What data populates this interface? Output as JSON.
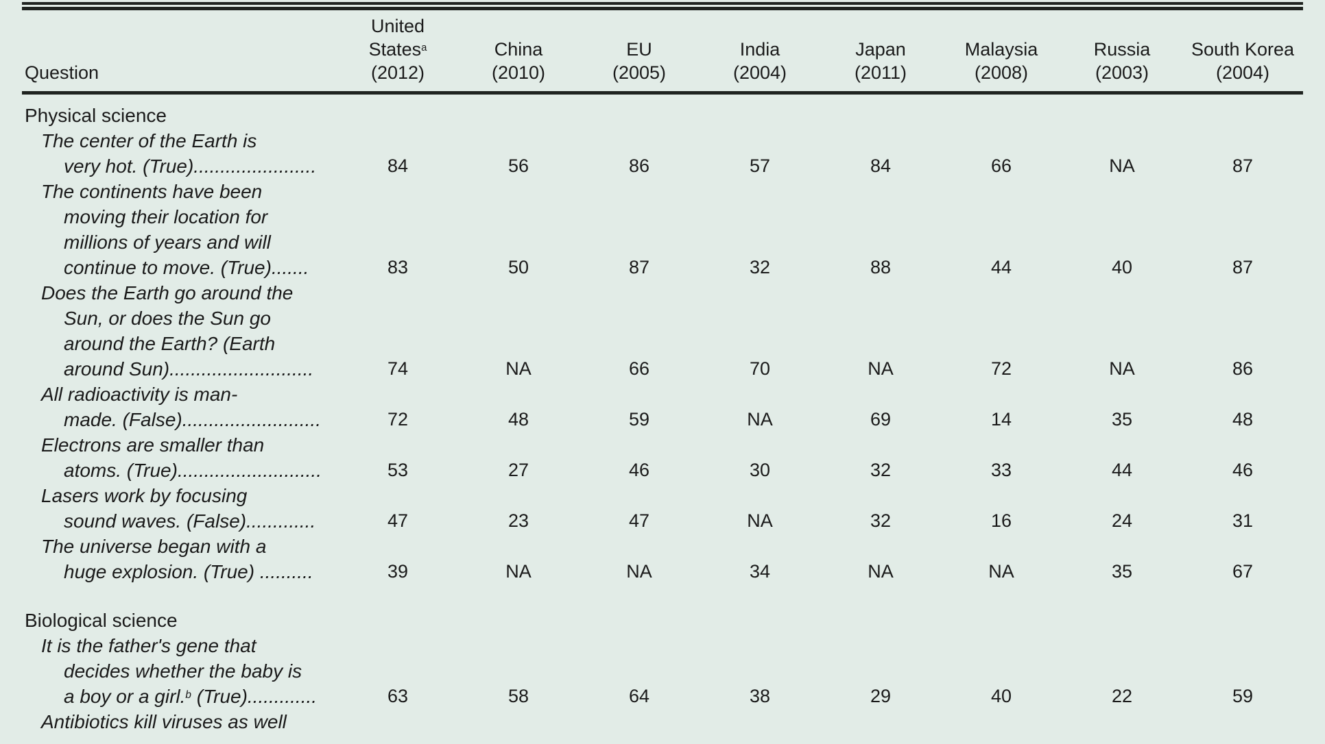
{
  "page": {
    "background_color": "#e2ece7",
    "text_color": "#1a1a1a",
    "rule_color": "#1f2320"
  },
  "table": {
    "question_header": "Question",
    "columns": [
      {
        "name_lines": [
          "United",
          {
            "parts": [
              {
                "text": "States"
              },
              {
                "sup": "a"
              }
            ]
          }
        ],
        "year": "(2012)"
      },
      {
        "name_lines": [
          "China"
        ],
        "year": "(2010)"
      },
      {
        "name_lines": [
          "EU"
        ],
        "year": "(2005)"
      },
      {
        "name_lines": [
          "India"
        ],
        "year": "(2004)"
      },
      {
        "name_lines": [
          "Japan"
        ],
        "year": "(2011)"
      },
      {
        "name_lines": [
          "Malaysia"
        ],
        "year": "(2008)"
      },
      {
        "name_lines": [
          "Russia"
        ],
        "year": "(2003)"
      },
      {
        "name_lines": [
          "South Korea"
        ],
        "year": "(2004)"
      }
    ],
    "sections": [
      {
        "title": "Physical science",
        "rows": [
          {
            "lines": [
              "The center of the Earth is",
              "very hot. (True)......................."
            ],
            "values": [
              "84",
              "56",
              "86",
              "57",
              "84",
              "66",
              "NA",
              "87"
            ]
          },
          {
            "lines": [
              "The continents have been",
              "moving their location for",
              "millions of years and will",
              "continue to move. (True)......."
            ],
            "values": [
              "83",
              "50",
              "87",
              "32",
              "88",
              "44",
              "40",
              "87"
            ]
          },
          {
            "lines": [
              "Does the Earth go around the",
              "Sun, or does the Sun go",
              "around the Earth? (Earth",
              "around Sun)..........................."
            ],
            "values": [
              "74",
              "NA",
              "66",
              "70",
              "NA",
              "72",
              "NA",
              "86"
            ]
          },
          {
            "lines": [
              "All radioactivity is man-",
              "made. (False).........................."
            ],
            "values": [
              "72",
              "48",
              "59",
              "NA",
              "69",
              "14",
              "35",
              "48"
            ]
          },
          {
            "lines": [
              "Electrons are smaller than",
              "atoms. (True)..........................."
            ],
            "values": [
              "53",
              "27",
              "46",
              "30",
              "32",
              "33",
              "44",
              "46"
            ]
          },
          {
            "lines": [
              "Lasers work by focusing",
              "sound waves. (False)............."
            ],
            "values": [
              "47",
              "23",
              "47",
              "NA",
              "32",
              "16",
              "24",
              "31"
            ]
          },
          {
            "lines": [
              "The universe began with a",
              "huge explosion. (True) .........."
            ],
            "values": [
              "39",
              "NA",
              "NA",
              "34",
              "NA",
              "NA",
              "35",
              "67"
            ]
          }
        ]
      },
      {
        "title": "Biological science",
        "rows": [
          {
            "lines": [
              "It is the father's gene that",
              "decides whether the baby is",
              {
                "parts": [
                  {
                    "text": "a boy or a girl."
                  },
                  {
                    "sup": "b"
                  },
                  {
                    "text": " (True)............."
                  }
                ]
              }
            ],
            "values": [
              "63",
              "58",
              "64",
              "38",
              "29",
              "40",
              "22",
              "59"
            ]
          },
          {
            "lines": [
              "Antibiotics kill viruses as well"
            ],
            "values": []
          }
        ]
      }
    ]
  }
}
